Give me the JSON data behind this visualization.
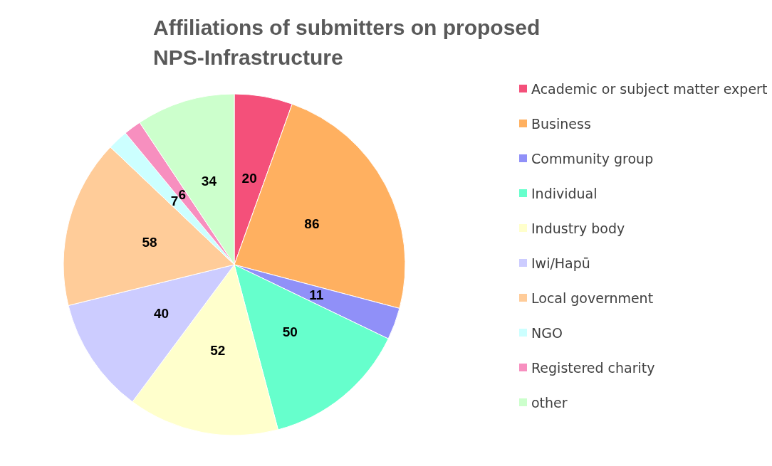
{
  "chart_data": {
    "type": "pie",
    "title": "Affiliations of submitters on proposed NPS-Infrastructure",
    "categories": [
      "Academic or subject matter expert",
      "Business",
      "Community group",
      "Individual",
      "Industry body",
      "Iwi/Hapū",
      "Local government",
      "NGO",
      "Registered charity",
      "other"
    ],
    "values": [
      20,
      86,
      11,
      50,
      52,
      40,
      58,
      7,
      6,
      34
    ],
    "colors": [
      "#f4507a",
      "#ffb060",
      "#9090f8",
      "#66ffcc",
      "#ffffcc",
      "#ccccff",
      "#ffcc99",
      "#ccffff",
      "#f78fbf",
      "#ccffcc"
    ],
    "data_labels": true,
    "legend": "right"
  }
}
